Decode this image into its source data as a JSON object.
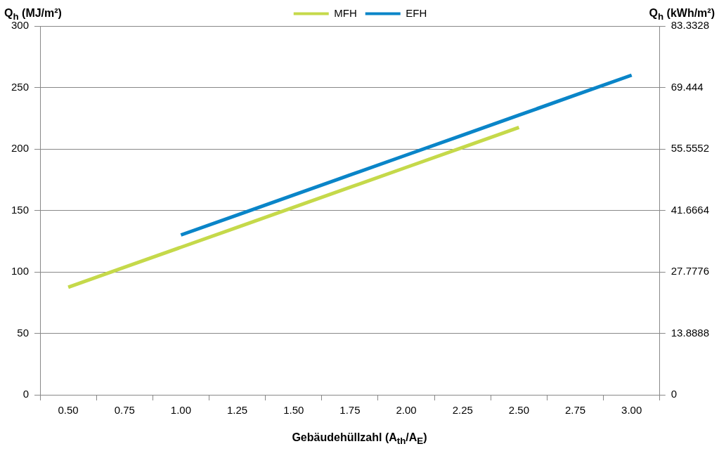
{
  "chart_data": {
    "type": "line",
    "xlabel": "Gebäudehüllzahl (A$_{th}$/A$_{E}$)",
    "ylabel": "Q$_{h}$ (MJ/m²)",
    "y2label": "Q$_{h}$ (kWh/m²)",
    "categories": [
      "0.50",
      "0.75",
      "1.00",
      "1.25",
      "1.50",
      "1.75",
      "2.00",
      "2.25",
      "2.50",
      "2.75",
      "3.00"
    ],
    "series": [
      {
        "name": "MFH",
        "color": "#c5d94a",
        "values": [
          87.5,
          103.75,
          120,
          136.25,
          152.5,
          168.75,
          185,
          201.25,
          217.5,
          null,
          null
        ]
      },
      {
        "name": "EFH",
        "color": "#0a85c8",
        "values": [
          null,
          null,
          130,
          146.25,
          162.5,
          178.75,
          195,
          211.25,
          227.5,
          243.75,
          260
        ]
      }
    ],
    "ylim": [
      0,
      300
    ],
    "yticks": [
      0,
      50,
      100,
      150,
      200,
      250,
      300
    ],
    "y2lim": [
      0,
      83.3328
    ],
    "y2ticks": [
      0,
      13.8888,
      27.7776,
      41.6664,
      55.5552,
      69.444,
      83.3328
    ],
    "grid": "y",
    "legend": "top",
    "marker": "none",
    "line_style": "solid"
  }
}
